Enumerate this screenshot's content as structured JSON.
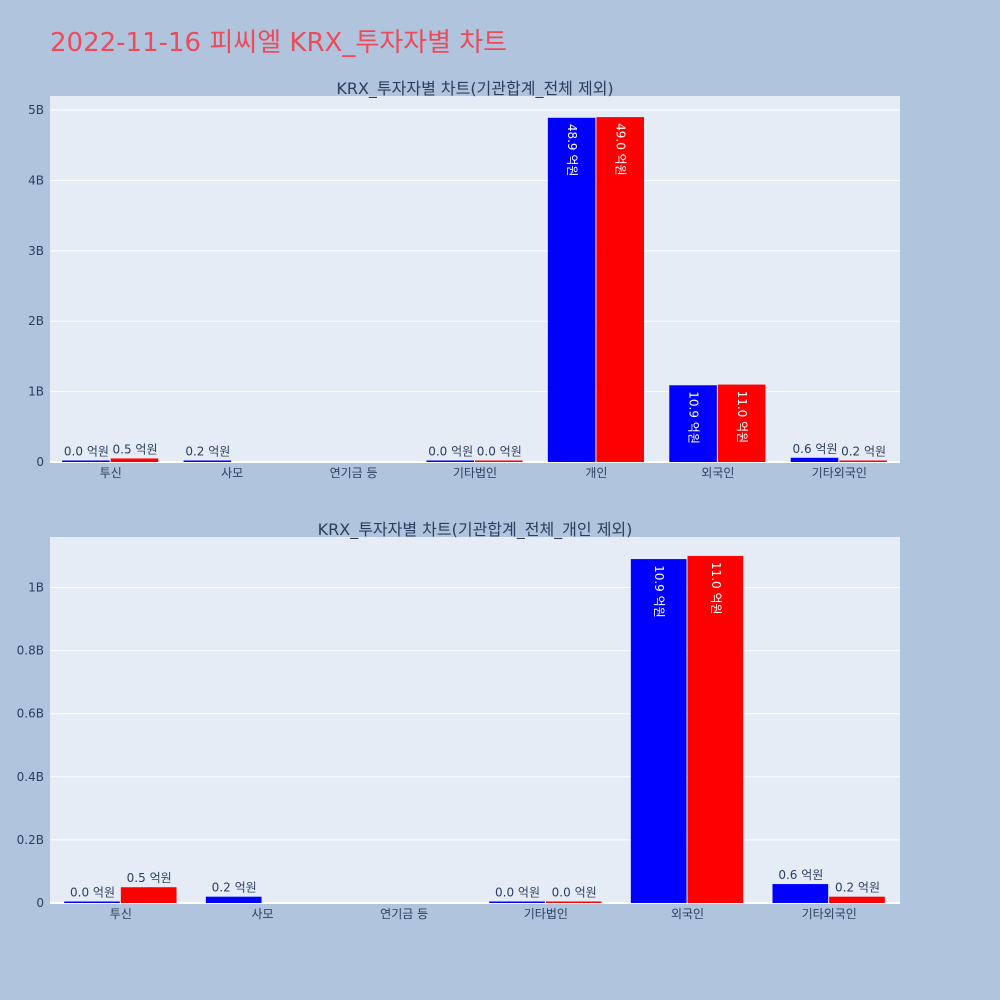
{
  "page_title": "2022-11-16 피씨엘 KRX_투자자별 차트",
  "colors": {
    "page_bg": "#b0c4de",
    "plot_bg": "#e5ecf6",
    "series_1": "#0000ff",
    "series_2": "#ff0000",
    "title": "#ee4b5a",
    "text": "#2a3f5f"
  },
  "chart_data": [
    {
      "type": "bar",
      "title": "KRX_투자자별 차트(기관합계_전체 제외)",
      "categories": [
        "투신",
        "사모",
        "연기금 등",
        "기타법인",
        "개인",
        "외국인",
        "기타외국인"
      ],
      "ylim": [
        0,
        5.2
      ],
      "yticks": [
        0,
        1,
        2,
        3,
        4,
        5
      ],
      "ytick_labels": [
        "0",
        "1B",
        "2B",
        "3B",
        "4B",
        "5B"
      ],
      "grid": true,
      "series": [
        {
          "color": "#0000ff",
          "values": [
            0.003,
            0.02,
            null,
            0.003,
            4.89,
            1.09,
            0.06
          ],
          "labels": [
            "0.0 억원",
            "0.2 억원",
            "",
            "0.0 억원",
            "48.9 억원",
            "10.9 억원",
            "0.6 억원"
          ]
        },
        {
          "color": "#ff0000",
          "values": [
            0.05,
            null,
            null,
            0.003,
            4.9,
            1.1,
            0.02
          ],
          "labels": [
            "0.5 억원",
            "",
            "",
            "0.0 억원",
            "49.0 억원",
            "11.0 억원",
            "0.2 억원"
          ]
        }
      ]
    },
    {
      "type": "bar",
      "title": "KRX_투자자별 차트(기관합계_전체_개인 제외)",
      "categories": [
        "투신",
        "사모",
        "연기금 등",
        "기타법인",
        "외국인",
        "기타외국인"
      ],
      "ylim": [
        0,
        1.16
      ],
      "yticks": [
        0,
        0.2,
        0.4,
        0.6,
        0.8,
        1.0
      ],
      "ytick_labels": [
        "0",
        "0.2B",
        "0.4B",
        "0.6B",
        "0.8B",
        "1B"
      ],
      "grid": true,
      "series": [
        {
          "color": "#0000ff",
          "values": [
            0.003,
            0.02,
            null,
            0.003,
            1.09,
            0.06
          ],
          "labels": [
            "0.0 억원",
            "0.2 억원",
            "",
            "0.0 억원",
            "10.9 억원",
            "0.6 억원"
          ]
        },
        {
          "color": "#ff0000",
          "values": [
            0.05,
            null,
            null,
            0.003,
            1.1,
            0.02
          ],
          "labels": [
            "0.5 억원",
            "",
            "",
            "0.0 억원",
            "11.0 억원",
            "0.2 억원"
          ]
        }
      ]
    }
  ]
}
